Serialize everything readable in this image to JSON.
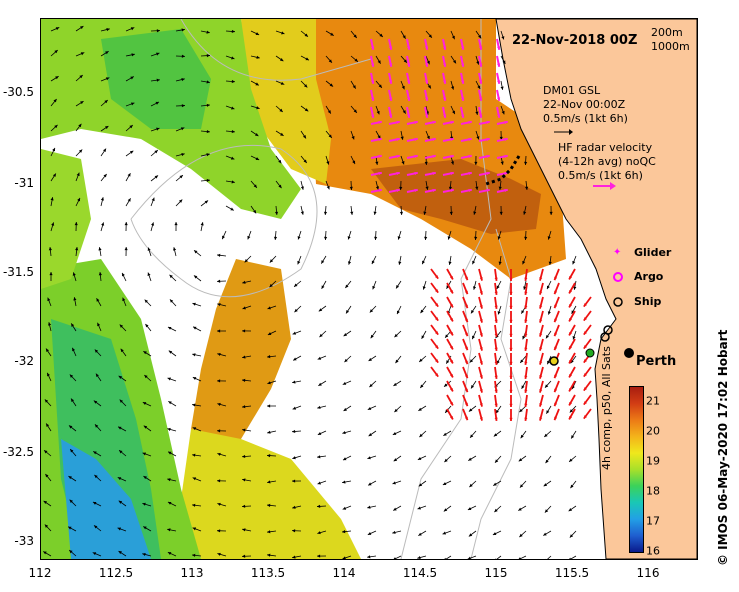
{
  "title": "22-Nov-2018 00Z",
  "depth_labels": [
    "200m",
    "1000m"
  ],
  "mooring_legend": {
    "line1": "DM01 GSL",
    "line2": "22-Nov 00:00Z",
    "line3": "0.5m/s (1kt 6h)"
  },
  "radar_legend": {
    "line1": "HF radar velocity",
    "line2": "(4-12h avg) noQC",
    "line3": "0.5m/s (1kt 6h)"
  },
  "platform_legend": [
    {
      "label": "Glider",
      "symbol": "magenta-star-icon",
      "color": "#ff00ff"
    },
    {
      "label": "Argo",
      "symbol": "magenta-ring-icon",
      "color": "#ff00ff"
    },
    {
      "label": "Ship",
      "symbol": "black-ring-icon",
      "color": "#000000"
    }
  ],
  "city_label": "Perth",
  "x_ticks": [
    "112",
    "112.5",
    "113",
    "113.5",
    "114",
    "114.5",
    "115",
    "115.5",
    "116"
  ],
  "y_ticks": [
    "-30.5",
    "-31",
    "-31.5",
    "-32",
    "-32.5",
    "-33"
  ],
  "colorbar": {
    "ticks": [
      "21",
      "20",
      "19",
      "18",
      "17",
      "16"
    ],
    "label": "4h comp, p50, All Sats",
    "min": 16,
    "max": 21.5
  },
  "credit": "© IMOS 06-May-2020 17:02 Hobart",
  "colors": {
    "land": "#fbc79a",
    "warm": "#e8890f",
    "hot": "#b8520c",
    "mid": "#e3d21c",
    "cool": "#8fd42a",
    "cooler": "#2fb85a",
    "cold": "#1f90d8",
    "radar_arrow": "#ee1111",
    "magenta": "#ff22dd"
  },
  "map_extent": {
    "lon_min": 112,
    "lon_max": 116.3,
    "lat_min": -33.1,
    "lat_max": -30.1
  }
}
